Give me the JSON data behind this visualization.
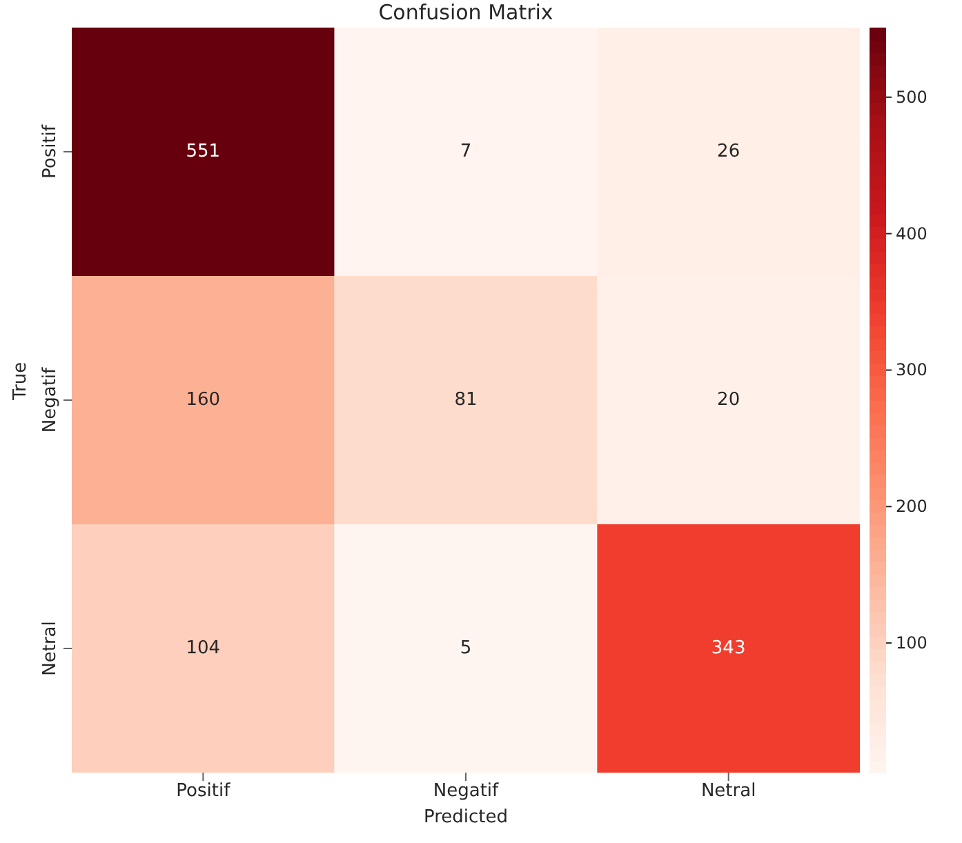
{
  "chart_data": {
    "type": "heatmap",
    "title": "Confusion Matrix",
    "xlabel": "Predicted",
    "ylabel": "True",
    "categories": [
      "Positif",
      "Negatif",
      "Netral"
    ],
    "y_categories": [
      "Positif",
      "Negatif",
      "Netral"
    ],
    "cells": [
      [
        551,
        7,
        26
      ],
      [
        160,
        81,
        20
      ],
      [
        104,
        5,
        343
      ]
    ],
    "data_labels": true,
    "clim": [
      5,
      551
    ],
    "cticks": [
      100,
      200,
      300,
      400,
      500
    ]
  }
}
